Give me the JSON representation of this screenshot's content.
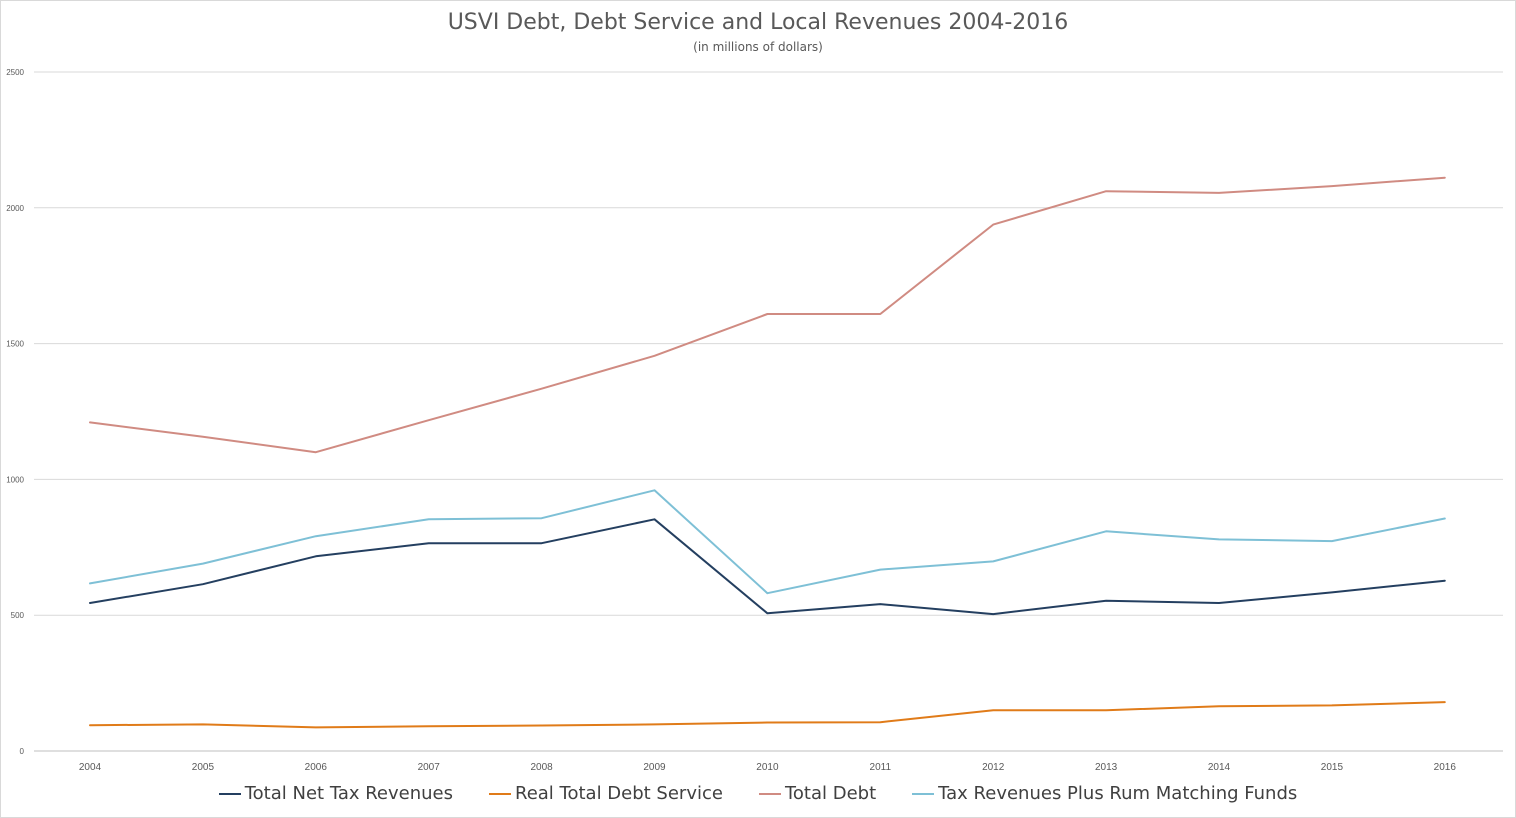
{
  "chart_data": {
    "type": "line",
    "title": "USVI Debt, Debt Service and Local Revenues 2004-2016",
    "subtitle": "(in millions of dollars)",
    "xlabel": "",
    "ylabel": "",
    "categories": [
      "2004",
      "2005",
      "2006",
      "2007",
      "2008",
      "2009",
      "2010",
      "2011",
      "2012",
      "2013",
      "2014",
      "2015",
      "2016"
    ],
    "ylim": [
      0,
      2500
    ],
    "yticks": [
      "0",
      "500",
      "1000",
      "1500",
      "2000",
      "2500"
    ],
    "grid": "horizontal",
    "legend_position": "bottom",
    "series": [
      {
        "name": "Total Net Tax Revenues",
        "color": "#243f60",
        "values": [
          545,
          614,
          717,
          765,
          765,
          853,
          507,
          541,
          504,
          553,
          545,
          584,
          627
        ]
      },
      {
        "name": "Real Total Debt Service",
        "color": "#e07b19",
        "values": [
          95,
          98,
          87,
          91,
          94,
          98,
          105,
          106,
          150,
          150,
          165,
          168,
          180
        ]
      },
      {
        "name": "Total Debt",
        "color": "#d08b82",
        "values": [
          1210,
          1157,
          1100,
          1218,
          1334,
          1455,
          1609,
          1609,
          1938,
          2061,
          2055,
          2080,
          2111
        ]
      },
      {
        "name": "Tax Revenues Plus Rum Matching Funds",
        "color": "#7ec0d6",
        "values": [
          617,
          690,
          791,
          853,
          857,
          960,
          581,
          668,
          698,
          809,
          779,
          773,
          856
        ]
      }
    ]
  }
}
